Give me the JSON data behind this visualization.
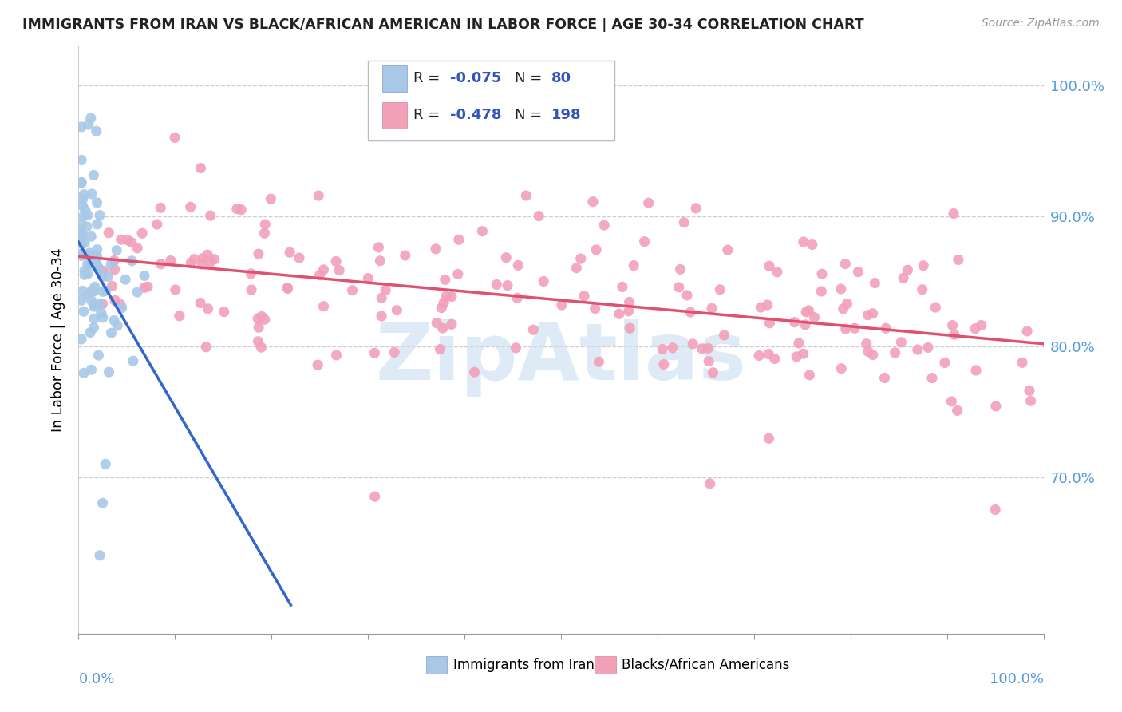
{
  "title": "IMMIGRANTS FROM IRAN VS BLACK/AFRICAN AMERICAN IN LABOR FORCE | AGE 30-34 CORRELATION CHART",
  "source": "Source: ZipAtlas.com",
  "ylabel": "In Labor Force | Age 30-34",
  "xlim": [
    0.0,
    1.0
  ],
  "ylim": [
    0.58,
    1.03
  ],
  "yticks": [
    0.7,
    0.8,
    0.9,
    1.0
  ],
  "ytick_labels": [
    "70.0%",
    "80.0%",
    "90.0%",
    "100.0%"
  ],
  "color_iran": "#a8c8e8",
  "color_black": "#f2a0b8",
  "trendline_iran": "#3366cc",
  "trendline_black": "#e05070",
  "watermark": "ZipAtlas",
  "watermark_color": "#c8dff0",
  "bg_color": "#ffffff",
  "grid_color": "#cccccc",
  "axis_color": "#999999",
  "title_color": "#222222",
  "source_color": "#999999",
  "tick_label_color": "#5599dd",
  "legend_text_color": "#222222",
  "legend_value_color": "#3355bb",
  "n_iran": 80,
  "n_black": 198,
  "r_iran": -0.075,
  "r_black": -0.478
}
